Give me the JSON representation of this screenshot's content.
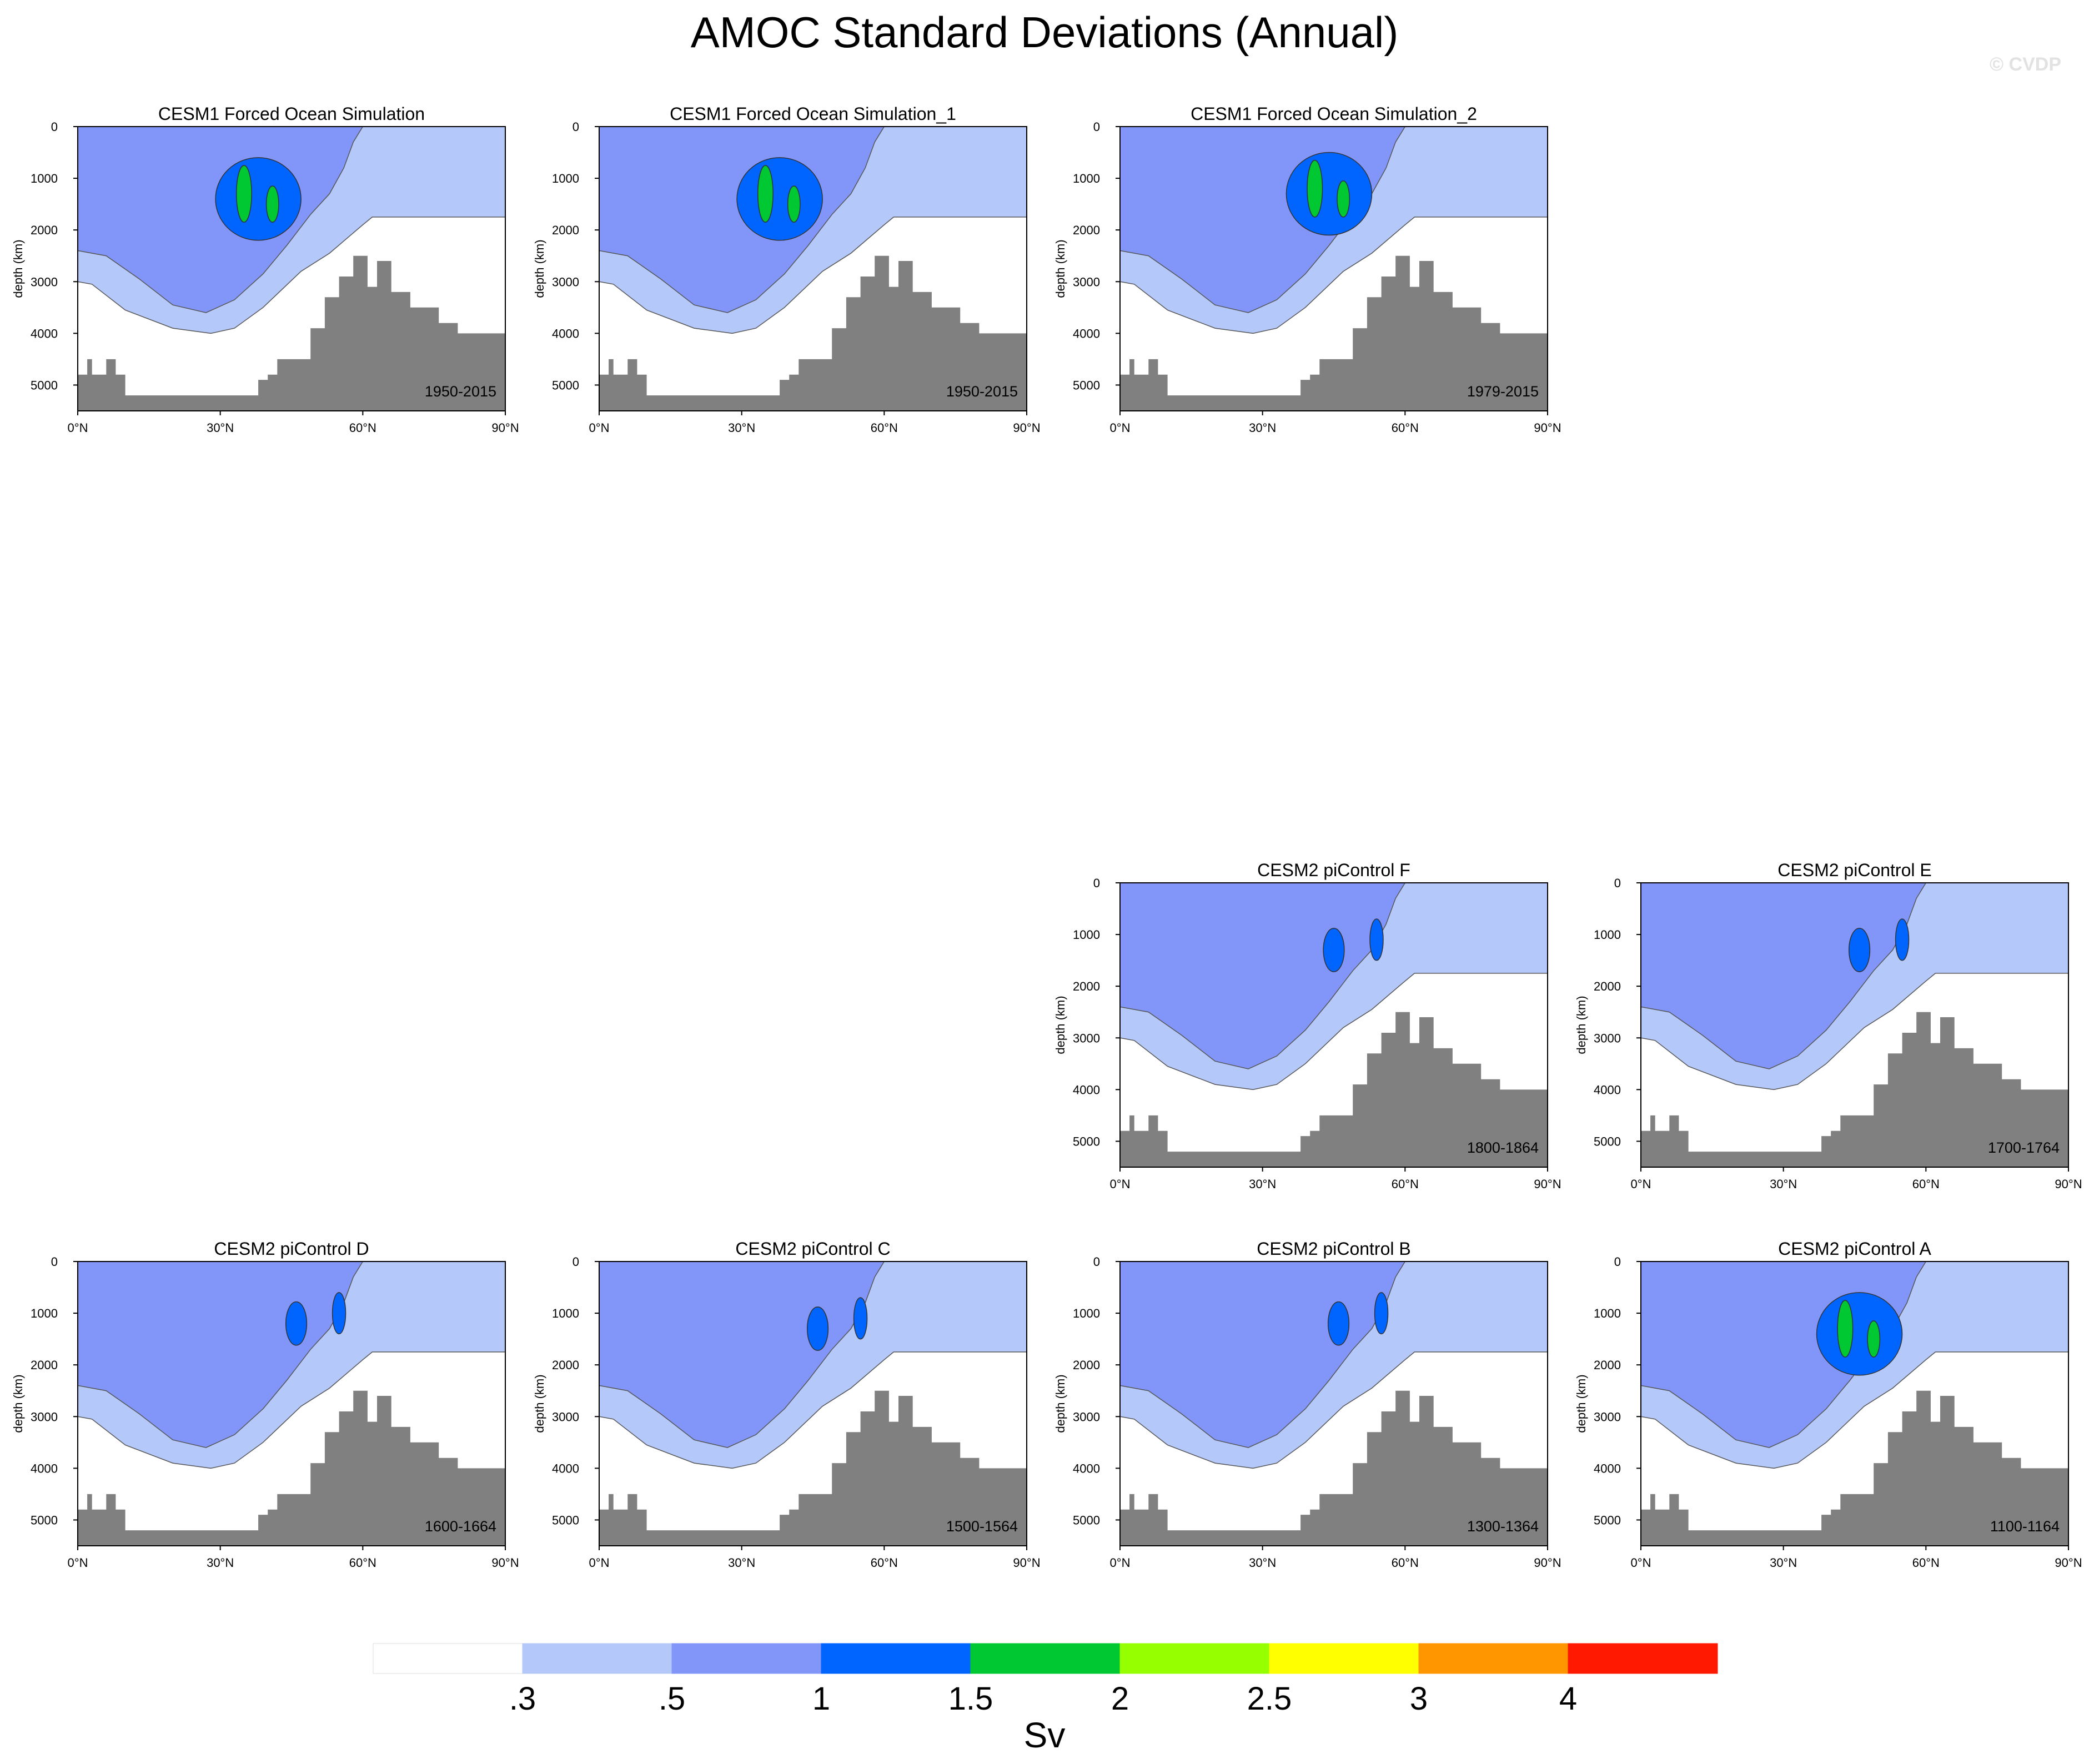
{
  "title": "AMOC Standard Deviations (Annual)",
  "watermark": "© CVDP",
  "colorbar": {
    "labels": [
      ".3",
      ".5",
      "1",
      "1.5",
      "2",
      "2.5",
      "3",
      "4"
    ],
    "colors": [
      "#ffffff",
      "#b4c8fa",
      "#8296fa",
      "#0064ff",
      "#00c832",
      "#96ff00",
      "#ffff00",
      "#ff9600",
      "#ff1900"
    ],
    "units": "Sv"
  },
  "chart_data": [
    {
      "type": "contour",
      "title": "CESM1 Forced Ocean Simulation",
      "period": "1950-2015",
      "ylabel": "depth (km)",
      "xlim": [
        0,
        90
      ],
      "ylim": [
        5500,
        0
      ],
      "xticks": [
        "0°N",
        "30°N",
        "60°N",
        "90°N"
      ],
      "yticks": [
        "0",
        "1000",
        "2000",
        "3000",
        "4000",
        "5000"
      ],
      "max_level": 2.0,
      "core_lat": 38,
      "core_depth": 1400
    },
    {
      "type": "contour",
      "title": "CESM1 Forced Ocean Simulation_1",
      "period": "1950-2015",
      "ylabel": "depth (km)",
      "xlim": [
        0,
        90
      ],
      "ylim": [
        5500,
        0
      ],
      "xticks": [
        "0°N",
        "30°N",
        "60°N",
        "90°N"
      ],
      "yticks": [
        "0",
        "1000",
        "2000",
        "3000",
        "4000",
        "5000"
      ],
      "max_level": 2.0,
      "core_lat": 38,
      "core_depth": 1400
    },
    {
      "type": "contour",
      "title": "CESM1 Forced Ocean Simulation_2",
      "period": "1979-2015",
      "ylabel": "depth (km)",
      "xlim": [
        0,
        90
      ],
      "ylim": [
        5500,
        0
      ],
      "xticks": [
        "0°N",
        "30°N",
        "60°N",
        "90°N"
      ],
      "yticks": [
        "0",
        "1000",
        "2000",
        "3000",
        "4000",
        "5000"
      ],
      "max_level": 2.0,
      "core_lat": 44,
      "core_depth": 1300
    },
    {
      "type": "contour",
      "title": "CESM2 piControl F",
      "period": "1800-1864",
      "ylabel": "depth (km)",
      "xlim": [
        0,
        90
      ],
      "ylim": [
        5500,
        0
      ],
      "xticks": [
        "0°N",
        "30°N",
        "60°N",
        "90°N"
      ],
      "yticks": [
        "0",
        "1000",
        "2000",
        "3000",
        "4000",
        "5000"
      ],
      "max_level": 1.5,
      "core_lat": 45,
      "core_depth": 1300
    },
    {
      "type": "contour",
      "title": "CESM2 piControl E",
      "period": "1700-1764",
      "ylabel": "depth (km)",
      "xlim": [
        0,
        90
      ],
      "ylim": [
        5500,
        0
      ],
      "xticks": [
        "0°N",
        "30°N",
        "60°N",
        "90°N"
      ],
      "yticks": [
        "0",
        "1000",
        "2000",
        "3000",
        "4000",
        "5000"
      ],
      "max_level": 1.5,
      "core_lat": 46,
      "core_depth": 1300
    },
    {
      "type": "contour",
      "title": "CESM2 piControl D",
      "period": "1600-1664",
      "ylabel": "depth (km)",
      "xlim": [
        0,
        90
      ],
      "ylim": [
        5500,
        0
      ],
      "xticks": [
        "0°N",
        "30°N",
        "60°N",
        "90°N"
      ],
      "yticks": [
        "0",
        "1000",
        "2000",
        "3000",
        "4000",
        "5000"
      ],
      "max_level": 1.5,
      "core_lat": 46,
      "core_depth": 1200
    },
    {
      "type": "contour",
      "title": "CESM2 piControl C",
      "period": "1500-1564",
      "ylabel": "depth (km)",
      "xlim": [
        0,
        90
      ],
      "ylim": [
        5500,
        0
      ],
      "xticks": [
        "0°N",
        "30°N",
        "60°N",
        "90°N"
      ],
      "yticks": [
        "0",
        "1000",
        "2000",
        "3000",
        "4000",
        "5000"
      ],
      "max_level": 1.5,
      "core_lat": 46,
      "core_depth": 1300
    },
    {
      "type": "contour",
      "title": "CESM2 piControl B",
      "period": "1300-1364",
      "ylabel": "depth (km)",
      "xlim": [
        0,
        90
      ],
      "ylim": [
        5500,
        0
      ],
      "xticks": [
        "0°N",
        "30°N",
        "60°N",
        "90°N"
      ],
      "yticks": [
        "0",
        "1000",
        "2000",
        "3000",
        "4000",
        "5000"
      ],
      "max_level": 1.5,
      "core_lat": 46,
      "core_depth": 1200
    },
    {
      "type": "contour",
      "title": "CESM2 piControl A",
      "period": "1100-1164",
      "ylabel": "depth (km)",
      "xlim": [
        0,
        90
      ],
      "ylim": [
        5500,
        0
      ],
      "xticks": [
        "0°N",
        "30°N",
        "60°N",
        "90°N"
      ],
      "yticks": [
        "0",
        "1000",
        "2000",
        "3000",
        "4000",
        "5000"
      ],
      "max_level": 2.0,
      "core_lat": 46,
      "core_depth": 1400
    }
  ]
}
